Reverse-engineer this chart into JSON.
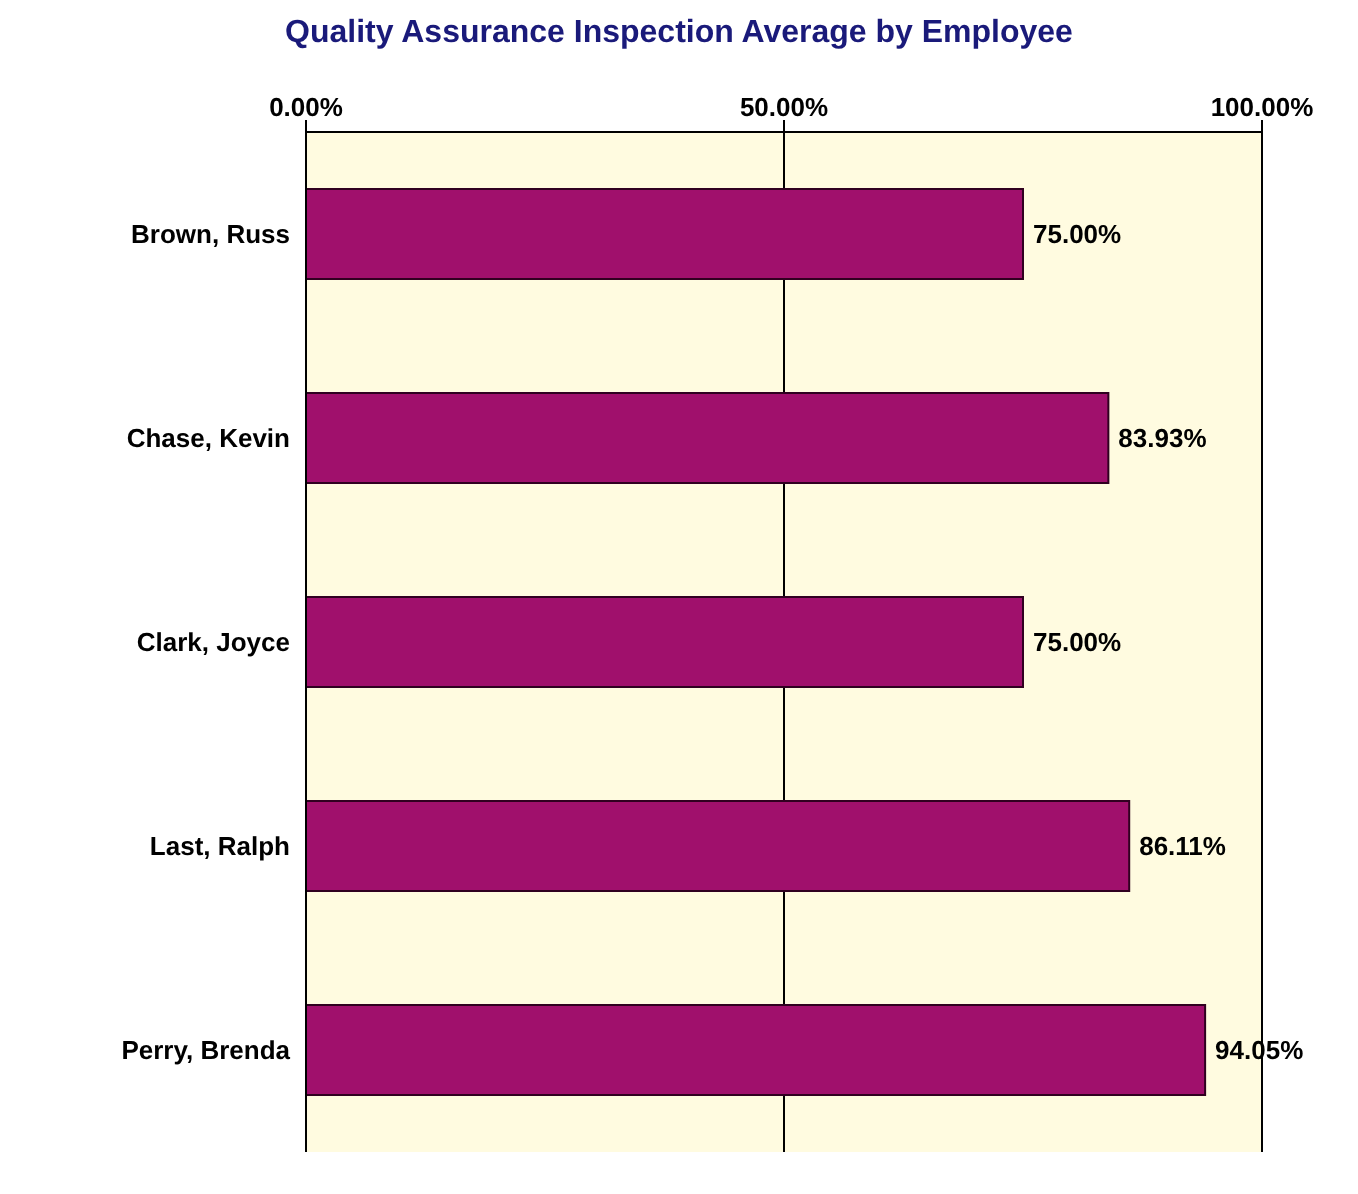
{
  "chart_data": {
    "type": "bar",
    "orientation": "horizontal",
    "title": "Quality Assurance Inspection Average by Employee",
    "categories": [
      "Brown, Russ",
      "Chase, Kevin",
      "Clark, Joyce",
      "Last, Ralph",
      "Perry, Brenda"
    ],
    "values": [
      75,
      83.93,
      75,
      86.11,
      94.05
    ],
    "value_labels": [
      "75.00%",
      "83.93%",
      "75.00%",
      "86.11%",
      "94.05%"
    ],
    "color": "#a0106c",
    "xlim": [
      0,
      100
    ],
    "xticks": [
      {
        "value": 0,
        "label": "0.00%"
      },
      {
        "value": 50,
        "label": "50.00%"
      },
      {
        "value": 100,
        "label": "100.00%"
      }
    ],
    "grid": "x"
  }
}
